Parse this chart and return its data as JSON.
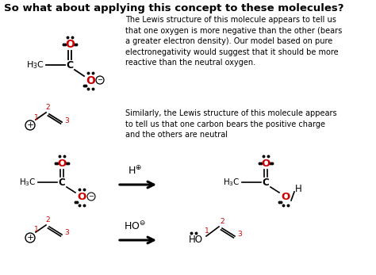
{
  "title": "So what about applying this concept to these molecules?",
  "title_fontsize": 9.5,
  "bg_color": "#ffffff",
  "text_color": "#000000",
  "red_color": "#cc0000",
  "fig_width": 4.74,
  "fig_height": 3.47,
  "dpi": 100,
  "paragraph1": "The Lewis structure of this molecule appears to tell us\nthat one oxygen is more negative than the other (bears\na greater electron density). Our model based on pure\nelectronegativity would suggest that it should be more\nreactive than the neutral oxygen.",
  "paragraph2": "Similarly, the Lewis structure of this molecule appears\nto tell us that one carbon bears the positive charge\nand the others are neutral"
}
